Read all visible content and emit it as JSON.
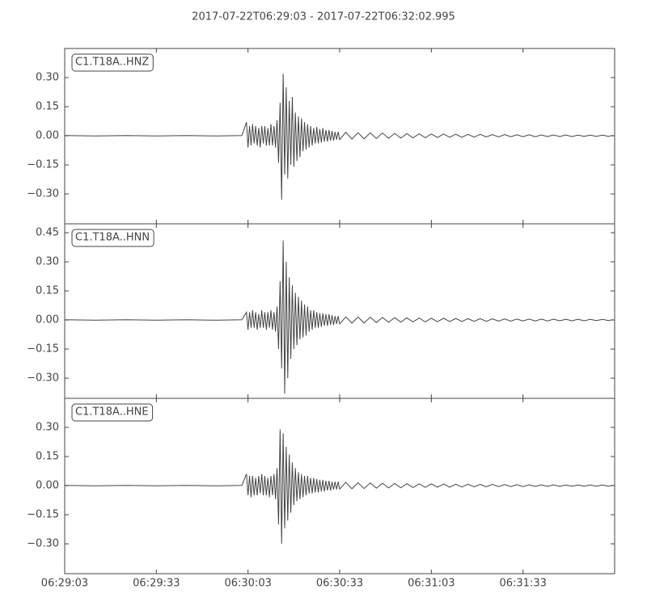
{
  "title": "2017-07-22T06:29:03  -  2017-07-22T06:32:02.995",
  "chart_data": [
    {
      "type": "line",
      "label": "C1.T18A..HNZ",
      "x": [
        0,
        10,
        20,
        30,
        40,
        50,
        58,
        59.5,
        60,
        60.5,
        61,
        61.5,
        62,
        62.5,
        63,
        63.5,
        64,
        64.5,
        65,
        65.5,
        66,
        66.5,
        67,
        67.5,
        68,
        68.5,
        69,
        69.5,
        70,
        70.5,
        71,
        71.5,
        72,
        72.5,
        73,
        73.5,
        74,
        74.5,
        75,
        75.5,
        76,
        76.5,
        77,
        77.5,
        78,
        78.5,
        79,
        79.5,
        80,
        80.5,
        81,
        81.5,
        82,
        82.5,
        83,
        83.5,
        84,
        84.5,
        85,
        85.5,
        86,
        86.5,
        87,
        87.5,
        88,
        88.5,
        89,
        89.5,
        90,
        92,
        94,
        96,
        98,
        100,
        102,
        104,
        106,
        108,
        110,
        112,
        114,
        116,
        118,
        120,
        122,
        124,
        126,
        128,
        130,
        132,
        134,
        136,
        138,
        140,
        142,
        144,
        146,
        148,
        150,
        152,
        154,
        156,
        158,
        160,
        162,
        164,
        166,
        168,
        170,
        172,
        174,
        176,
        178,
        179.5
      ],
      "series": [
        {
          "color": "#444444",
          "values": [
            0.001,
            -0.001,
            0.001,
            -0.001,
            0.001,
            -0.001,
            0.001,
            0.07,
            -0.06,
            0.05,
            -0.05,
            0.06,
            -0.04,
            0.05,
            -0.05,
            0.04,
            -0.06,
            0.05,
            -0.04,
            0.05,
            -0.05,
            0.04,
            -0.05,
            0.06,
            -0.05,
            0.05,
            -0.06,
            0.08,
            -0.14,
            0.17,
            -0.33,
            0.32,
            -0.2,
            0.25,
            -0.22,
            0.18,
            -0.15,
            0.2,
            -0.16,
            0.12,
            -0.13,
            0.1,
            -0.11,
            0.09,
            -0.08,
            0.07,
            -0.07,
            0.06,
            -0.06,
            0.05,
            -0.05,
            0.04,
            -0.04,
            0.045,
            -0.04,
            0.035,
            -0.035,
            0.04,
            -0.03,
            0.03,
            -0.03,
            0.03,
            -0.025,
            0.025,
            -0.025,
            0.02,
            -0.02,
            0.02,
            -0.02,
            0.018,
            -0.017,
            0.016,
            -0.016,
            0.015,
            -0.014,
            0.014,
            -0.013,
            0.012,
            -0.012,
            0.011,
            -0.011,
            0.01,
            -0.01,
            0.009,
            -0.009,
            0.009,
            -0.008,
            0.008,
            -0.008,
            0.007,
            -0.007,
            0.007,
            -0.006,
            0.006,
            -0.006,
            0.006,
            -0.005,
            0.005,
            -0.005,
            0.005,
            -0.005,
            0.004,
            -0.004,
            0.004,
            -0.004,
            0.004,
            -0.004,
            0.003,
            -0.003,
            0.003,
            -0.003,
            0.003,
            -0.003,
            0.002
          ]
        }
      ],
      "xlim": [
        0,
        179.995
      ],
      "ylim": [
        -0.454,
        0.45
      ],
      "yticks": [
        {
          "value": -0.3,
          "label": "−0.30"
        },
        {
          "value": -0.15,
          "label": "−0.15"
        },
        {
          "value": 0,
          "label": "0.00"
        },
        {
          "value": 0.15,
          "label": "0.15"
        },
        {
          "value": 0.3,
          "label": "0.30"
        }
      ]
    },
    {
      "type": "line",
      "label": "C1.T18A..HNN",
      "x": [
        0,
        10,
        20,
        30,
        40,
        50,
        58,
        59.5,
        60,
        60.5,
        61,
        61.5,
        62,
        62.5,
        63,
        63.5,
        64,
        64.5,
        65,
        65.5,
        66,
        66.5,
        67,
        67.5,
        68,
        68.5,
        69,
        69.5,
        70,
        70.5,
        71,
        71.5,
        72,
        72.5,
        73,
        73.5,
        74,
        74.5,
        75,
        75.5,
        76,
        76.5,
        77,
        77.5,
        78,
        78.5,
        79,
        79.5,
        80,
        80.5,
        81,
        81.5,
        82,
        82.5,
        83,
        83.5,
        84,
        84.5,
        85,
        85.5,
        86,
        86.5,
        87,
        87.5,
        88,
        88.5,
        89,
        89.5,
        90,
        92,
        94,
        96,
        98,
        100,
        102,
        104,
        106,
        108,
        110,
        112,
        114,
        116,
        118,
        120,
        122,
        124,
        126,
        128,
        130,
        132,
        134,
        136,
        138,
        140,
        142,
        144,
        146,
        148,
        150,
        152,
        154,
        156,
        158,
        160,
        162,
        164,
        166,
        168,
        170,
        172,
        174,
        176,
        178,
        179.5
      ],
      "series": [
        {
          "color": "#444444",
          "values": [
            0.001,
            -0.001,
            0.001,
            -0.001,
            0.001,
            -0.001,
            0.001,
            0.04,
            -0.05,
            0.04,
            -0.04,
            0.05,
            -0.04,
            0.04,
            -0.05,
            0.03,
            -0.04,
            0.05,
            -0.04,
            0.04,
            -0.05,
            0.04,
            -0.04,
            0.05,
            -0.05,
            0.04,
            -0.06,
            0.07,
            -0.15,
            0.2,
            -0.25,
            0.41,
            -0.38,
            0.3,
            -0.3,
            0.22,
            -0.2,
            0.18,
            -0.15,
            0.14,
            -0.13,
            0.12,
            -0.1,
            0.1,
            -0.09,
            0.08,
            -0.08,
            0.07,
            -0.06,
            0.05,
            -0.05,
            0.05,
            -0.04,
            0.04,
            -0.04,
            0.035,
            -0.035,
            0.035,
            -0.03,
            0.03,
            -0.03,
            0.03,
            -0.025,
            0.025,
            -0.025,
            0.02,
            -0.02,
            0.02,
            -0.02,
            0.016,
            -0.016,
            0.015,
            -0.015,
            0.014,
            -0.013,
            0.013,
            -0.012,
            0.012,
            -0.011,
            0.011,
            -0.01,
            0.01,
            -0.01,
            0.009,
            -0.009,
            0.009,
            -0.008,
            0.008,
            -0.008,
            0.007,
            -0.007,
            0.007,
            -0.007,
            0.006,
            -0.006,
            0.006,
            -0.006,
            0.005,
            -0.005,
            0.005,
            -0.005,
            0.005,
            -0.005,
            0.004,
            -0.004,
            0.004,
            -0.004,
            0.004,
            -0.004,
            0.003,
            -0.003,
            0.003,
            -0.003,
            0.002
          ]
        }
      ],
      "xlim": [
        0,
        179.995
      ],
      "ylim": [
        -0.404,
        0.496
      ],
      "yticks": [
        {
          "value": -0.3,
          "label": "−0.30"
        },
        {
          "value": -0.15,
          "label": "−0.15"
        },
        {
          "value": 0,
          "label": "0.00"
        },
        {
          "value": 0.15,
          "label": "0.15"
        },
        {
          "value": 0.3,
          "label": "0.30"
        },
        {
          "value": 0.45,
          "label": "0.45"
        }
      ]
    },
    {
      "type": "line",
      "label": "C1.T18A..HNE",
      "x": [
        0,
        10,
        20,
        30,
        40,
        50,
        58,
        59.5,
        60,
        60.5,
        61,
        61.5,
        62,
        62.5,
        63,
        63.5,
        64,
        64.5,
        65,
        65.5,
        66,
        66.5,
        67,
        67.5,
        68,
        68.5,
        69,
        69.5,
        70,
        70.5,
        71,
        71.5,
        72,
        72.5,
        73,
        73.5,
        74,
        74.5,
        75,
        75.5,
        76,
        76.5,
        77,
        77.5,
        78,
        78.5,
        79,
        79.5,
        80,
        80.5,
        81,
        81.5,
        82,
        82.5,
        83,
        83.5,
        84,
        84.5,
        85,
        85.5,
        86,
        86.5,
        87,
        87.5,
        88,
        88.5,
        89,
        89.5,
        90,
        92,
        94,
        96,
        98,
        100,
        102,
        104,
        106,
        108,
        110,
        112,
        114,
        116,
        118,
        120,
        122,
        124,
        126,
        128,
        130,
        132,
        134,
        136,
        138,
        140,
        142,
        144,
        146,
        148,
        150,
        152,
        154,
        156,
        158,
        160,
        162,
        164,
        166,
        168,
        170,
        172,
        174,
        176,
        178,
        179.5
      ],
      "series": [
        {
          "color": "#444444",
          "values": [
            0.001,
            -0.001,
            0.001,
            -0.001,
            0.001,
            -0.001,
            0.001,
            0.06,
            -0.05,
            0.05,
            -0.06,
            0.05,
            -0.05,
            0.04,
            -0.05,
            0.05,
            -0.04,
            0.06,
            -0.05,
            0.05,
            -0.05,
            0.04,
            -0.06,
            0.05,
            -0.05,
            0.06,
            -0.07,
            0.09,
            -0.2,
            0.29,
            -0.3,
            0.27,
            -0.22,
            0.2,
            -0.18,
            0.16,
            -0.14,
            0.12,
            -0.1,
            0.09,
            -0.08,
            0.07,
            -0.07,
            0.06,
            -0.06,
            0.05,
            -0.05,
            0.05,
            -0.04,
            0.04,
            -0.04,
            0.04,
            -0.035,
            0.035,
            -0.035,
            0.03,
            -0.03,
            0.03,
            -0.03,
            0.025,
            -0.025,
            0.025,
            -0.025,
            0.02,
            -0.02,
            0.02,
            -0.02,
            0.02,
            -0.018,
            0.017,
            -0.016,
            0.015,
            -0.015,
            0.014,
            -0.013,
            0.012,
            -0.012,
            0.011,
            -0.011,
            0.01,
            -0.01,
            0.009,
            -0.009,
            0.009,
            -0.008,
            0.008,
            -0.008,
            0.007,
            -0.007,
            0.007,
            -0.006,
            0.006,
            -0.006,
            0.006,
            -0.005,
            0.005,
            -0.005,
            0.005,
            -0.005,
            0.004,
            -0.004,
            0.004,
            -0.004,
            0.004,
            -0.004,
            0.003,
            -0.003,
            0.003,
            -0.003,
            0.003,
            -0.003,
            0.003,
            -0.003,
            0.002
          ]
        }
      ],
      "xlim": [
        0,
        179.995
      ],
      "ylim": [
        -0.454,
        0.45
      ],
      "yticks": [
        {
          "value": -0.3,
          "label": "−0.30"
        },
        {
          "value": -0.15,
          "label": "−0.15"
        },
        {
          "value": 0,
          "label": "0.00"
        },
        {
          "value": 0.15,
          "label": "0.15"
        },
        {
          "value": 0.3,
          "label": "0.30"
        }
      ],
      "xticks": [
        {
          "value": 0,
          "label": "06:29:03"
        },
        {
          "value": 30,
          "label": "06:29:33"
        },
        {
          "value": 60,
          "label": "06:30:03"
        },
        {
          "value": 90,
          "label": "06:30:33"
        },
        {
          "value": 120,
          "label": "06:31:03"
        },
        {
          "value": 150,
          "label": "06:31:33"
        }
      ]
    }
  ]
}
